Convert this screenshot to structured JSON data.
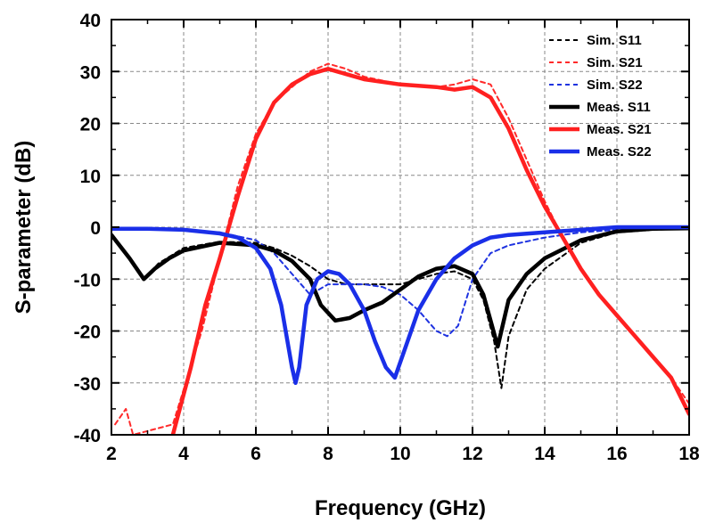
{
  "chart_data": {
    "type": "line",
    "title": "",
    "xlabel": "Frequency (GHz)",
    "ylabel": "S-parameter (dB)",
    "xlim": [
      2,
      18
    ],
    "ylim": [
      -40,
      40
    ],
    "xticks": [
      "2",
      "4",
      "6",
      "8",
      "10",
      "12",
      "14",
      "16",
      "18"
    ],
    "yticks": [
      "40",
      "30",
      "20",
      "10",
      "0",
      "-10",
      "-20",
      "-30",
      "-40"
    ],
    "grid": true,
    "legend_position": "top-right",
    "series": [
      {
        "name": "Sim. S11",
        "color": "#000000",
        "style": "dashed",
        "x": [
          2,
          2.5,
          2.9,
          3.3,
          4,
          5,
          6,
          6.5,
          7,
          7.5,
          8,
          8.5,
          9,
          9.5,
          10,
          10.5,
          11,
          11.5,
          12,
          12.3,
          12.6,
          12.8,
          13,
          13.5,
          14,
          15,
          16,
          17,
          18
        ],
        "y": [
          -1.5,
          -6,
          -10,
          -7,
          -4,
          -2.8,
          -3,
          -4,
          -5.5,
          -7.5,
          -10,
          -11,
          -11,
          -11,
          -11,
          -10,
          -9,
          -8.5,
          -10,
          -14,
          -22,
          -31,
          -21,
          -12,
          -8,
          -3,
          -1,
          -0.5,
          -0.3
        ]
      },
      {
        "name": "Sim. S21",
        "color": "#ff2a2a",
        "style": "dashed",
        "x": [
          2.1,
          2.4,
          2.6,
          3.7,
          4.5,
          5,
          5.5,
          6,
          6.5,
          7,
          7.5,
          8,
          8.5,
          9,
          10,
          11,
          11.5,
          12,
          12.5,
          13,
          13.5,
          14,
          14.5,
          15,
          15.5,
          16,
          16.5,
          17,
          17.5,
          18
        ],
        "y": [
          -38,
          -35,
          -40,
          -38,
          -20,
          -6,
          8,
          18,
          24,
          27,
          30,
          31.5,
          30.5,
          29,
          27.5,
          27,
          27.5,
          28.5,
          27.5,
          21,
          13,
          5,
          -2,
          -8,
          -13,
          -17,
          -21,
          -25,
          -29,
          -34
        ]
      },
      {
        "name": "Sim. S22",
        "color": "#1f33e0",
        "style": "dashed",
        "x": [
          2,
          3,
          4,
          5,
          6,
          6.5,
          7,
          7.5,
          8,
          8.5,
          9,
          9.5,
          10,
          10.5,
          11,
          11.3,
          11.6,
          12,
          12.5,
          13,
          14,
          15,
          16,
          17,
          18
        ],
        "y": [
          -0.3,
          -0.3,
          -0.5,
          -1,
          -2.5,
          -5,
          -9,
          -13,
          -11,
          -11,
          -11,
          -11.5,
          -13,
          -16,
          -20,
          -21,
          -19,
          -10,
          -5,
          -3.5,
          -2,
          -1,
          -0.5,
          -0.3,
          -0.3
        ]
      },
      {
        "name": "Meas. S11",
        "color": "#000000",
        "style": "solid",
        "x": [
          2,
          2.5,
          2.9,
          3.2,
          3.6,
          4,
          5,
          6,
          6.5,
          7,
          7.5,
          7.8,
          8.2,
          8.6,
          9,
          9.5,
          10,
          10.5,
          11,
          11.5,
          12,
          12.3,
          12.5,
          12.7,
          13,
          13.5,
          14,
          15,
          16,
          17,
          18
        ],
        "y": [
          -1.5,
          -6,
          -10,
          -8,
          -6,
          -4.5,
          -3,
          -3.5,
          -4.5,
          -6.5,
          -10,
          -15,
          -18,
          -17.5,
          -16,
          -14.5,
          -12,
          -9.5,
          -8,
          -7.5,
          -9,
          -13,
          -18,
          -23,
          -14,
          -9,
          -6,
          -2.5,
          -0.8,
          -0.3,
          -0.2
        ]
      },
      {
        "name": "Meas. S21",
        "color": "#ff2020",
        "style": "solid",
        "x": [
          3.7,
          4.2,
          4.6,
          5,
          5.5,
          6,
          6.5,
          7,
          7.5,
          8,
          8.5,
          9,
          10,
          11,
          11.5,
          12,
          12.5,
          13,
          13.5,
          14,
          14.5,
          15,
          15.5,
          16,
          16.5,
          17,
          17.5,
          18
        ],
        "y": [
          -40,
          -27,
          -15,
          -6,
          6,
          17,
          24,
          27.5,
          29.5,
          30.5,
          29.5,
          28.5,
          27.5,
          27,
          26.5,
          27,
          25,
          19,
          11,
          4,
          -2,
          -8,
          -13,
          -17,
          -21,
          -25,
          -29,
          -36
        ]
      },
      {
        "name": "Meas. S22",
        "color": "#1a2fe8",
        "style": "solid",
        "x": [
          2,
          3,
          4,
          5,
          5.5,
          6,
          6.4,
          6.7,
          7,
          7.1,
          7.2,
          7.4,
          7.7,
          8,
          8.3,
          8.6,
          9,
          9.3,
          9.6,
          9.85,
          10.1,
          10.5,
          11,
          11.5,
          12,
          12.5,
          13,
          14,
          15,
          16,
          17,
          18
        ],
        "y": [
          -0.3,
          -0.3,
          -0.5,
          -1.2,
          -2,
          -4,
          -8,
          -15,
          -27,
          -30,
          -27,
          -15,
          -10,
          -8.5,
          -9,
          -11,
          -16,
          -22,
          -27,
          -29,
          -24,
          -16,
          -10,
          -6,
          -3.5,
          -2,
          -1.5,
          -1,
          -0.5,
          0,
          0,
          0
        ]
      }
    ]
  }
}
